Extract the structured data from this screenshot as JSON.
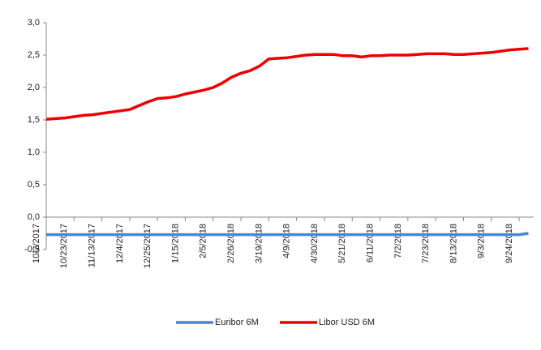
{
  "chart_data": {
    "type": "line",
    "x": [
      "10/2/2017",
      "10/9/2017",
      "10/16/2017",
      "10/23/2017",
      "10/30/2017",
      "11/6/2017",
      "11/13/2017",
      "11/20/2017",
      "11/27/2017",
      "12/4/2017",
      "12/11/2017",
      "12/18/2017",
      "12/25/2017",
      "1/1/2018",
      "1/8/2018",
      "1/15/2018",
      "1/22/2018",
      "1/29/2018",
      "2/5/2018",
      "2/12/2018",
      "2/19/2018",
      "2/26/2018",
      "3/5/2018",
      "3/12/2018",
      "3/19/2018",
      "3/26/2018",
      "4/2/2018",
      "4/9/2018",
      "4/16/2018",
      "4/23/2018",
      "4/30/2018",
      "5/7/2018",
      "5/14/2018",
      "5/21/2018",
      "5/28/2018",
      "6/4/2018",
      "6/11/2018",
      "6/18/2018",
      "6/25/2018",
      "7/2/2018",
      "7/9/2018",
      "7/16/2018",
      "7/23/2018",
      "7/30/2018",
      "8/6/2018",
      "8/13/2018",
      "8/20/2018",
      "8/27/2018",
      "9/3/2018",
      "9/10/2018",
      "9/17/2018",
      "9/24/2018",
      "10/1/2018"
    ],
    "xticks": [
      "10/2/2017",
      "10/23/2017",
      "11/13/2017",
      "12/4/2017",
      "12/25/2017",
      "1/15/2018",
      "2/5/2018",
      "2/26/2018",
      "3/19/2018",
      "4/9/2018",
      "4/30/2018",
      "5/21/2018",
      "6/11/2018",
      "7/2/2018",
      "7/23/2018",
      "8/13/2018",
      "9/3/2018",
      "9/24/2018"
    ],
    "series": [
      {
        "name": "Euribor 6M",
        "color": "#4a86d0",
        "values": [
          -0.27,
          -0.27,
          -0.27,
          -0.27,
          -0.27,
          -0.27,
          -0.27,
          -0.27,
          -0.27,
          -0.27,
          -0.27,
          -0.27,
          -0.27,
          -0.27,
          -0.27,
          -0.27,
          -0.27,
          -0.27,
          -0.27,
          -0.27,
          -0.27,
          -0.27,
          -0.27,
          -0.27,
          -0.27,
          -0.27,
          -0.27,
          -0.27,
          -0.27,
          -0.27,
          -0.27,
          -0.27,
          -0.27,
          -0.27,
          -0.27,
          -0.27,
          -0.27,
          -0.27,
          -0.27,
          -0.27,
          -0.27,
          -0.27,
          -0.27,
          -0.27,
          -0.27,
          -0.27,
          -0.27,
          -0.27,
          -0.27,
          -0.27,
          -0.27,
          -0.27,
          -0.25
        ]
      },
      {
        "name": "Libor USD 6M",
        "color": "#ee0000",
        "values": [
          1.51,
          1.52,
          1.53,
          1.55,
          1.57,
          1.58,
          1.6,
          1.62,
          1.64,
          1.66,
          1.72,
          1.78,
          1.83,
          1.84,
          1.86,
          1.9,
          1.93,
          1.96,
          2.0,
          2.07,
          2.16,
          2.22,
          2.26,
          2.33,
          2.44,
          2.45,
          2.46,
          2.48,
          2.5,
          2.51,
          2.51,
          2.51,
          2.49,
          2.49,
          2.47,
          2.49,
          2.49,
          2.5,
          2.5,
          2.5,
          2.51,
          2.52,
          2.52,
          2.52,
          2.51,
          2.51,
          2.52,
          2.53,
          2.54,
          2.56,
          2.58,
          2.59,
          2.6
        ]
      }
    ],
    "xlim": [
      "10/2/2017",
      "10/5/2018"
    ],
    "ylim": [
      -0.5,
      3.0
    ],
    "yticks": [
      {
        "value": -0.5,
        "label": "-0,5"
      },
      {
        "value": 0,
        "label": "0,0"
      },
      {
        "value": 0.5,
        "label": "0,5"
      },
      {
        "value": 1.0,
        "label": "1,0"
      },
      {
        "value": 1.5,
        "label": "1,5"
      },
      {
        "value": 2.0,
        "label": "2,0"
      },
      {
        "value": 2.5,
        "label": "2,5"
      },
      {
        "value": 3.0,
        "label": "3,0"
      }
    ],
    "legend": "bottom"
  }
}
